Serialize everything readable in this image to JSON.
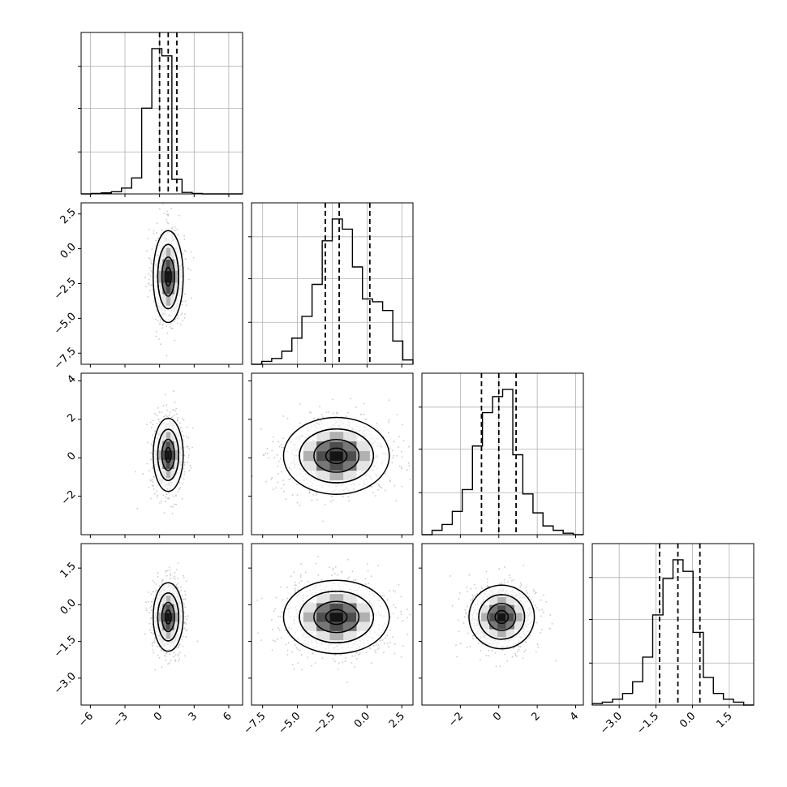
{
  "chart_data": {
    "type": "corner",
    "colors": {
      "line": "#000000",
      "grid": "#b0b0b0",
      "point": "#9a9a9a",
      "background": "#ffffff"
    },
    "grid": true,
    "parameters": [
      {
        "range": [
          -6.8,
          7.2
        ],
        "ticks": [
          -6,
          -3,
          0,
          3,
          6
        ],
        "tick_labels": [
          "−6",
          "−3",
          "0",
          "3",
          "6"
        ],
        "quantiles": [
          0.0,
          0.75,
          1.5
        ],
        "hist_bins": [
          -6.8,
          -5.92,
          -5.05,
          -4.18,
          -3.3,
          -2.42,
          -1.55,
          -0.67,
          0.2,
          1.07,
          1.95,
          2.83,
          3.7,
          4.58,
          5.45,
          6.33,
          7.2
        ],
        "hist_counts": [
          0,
          0.003,
          0.007,
          0.015,
          0.04,
          0.11,
          0.59,
          1.0,
          0.95,
          0.1,
          0.01,
          0.003,
          0,
          0,
          0,
          0
        ]
      },
      {
        "range": [
          -8.3,
          3.3
        ],
        "ticks": [
          -7.5,
          -5.0,
          -2.5,
          0.0,
          2.5
        ],
        "tick_labels": [
          "−7.5",
          "−5.0",
          "−2.5",
          "0.0",
          "2.5"
        ],
        "quantiles": [
          -3.0,
          -2.0,
          0.2
        ],
        "hist_bins": [
          -8.3,
          -7.57,
          -6.85,
          -6.12,
          -5.4,
          -4.68,
          -3.95,
          -3.22,
          -2.5,
          -1.77,
          -1.05,
          -0.33,
          0.4,
          1.12,
          1.85,
          2.57,
          3.3
        ],
        "hist_counts": [
          0,
          0.02,
          0.04,
          0.09,
          0.18,
          0.33,
          0.55,
          0.85,
          1.0,
          0.93,
          0.67,
          0.45,
          0.43,
          0.37,
          0.16,
          0.03
        ]
      },
      {
        "range": [
          -4.0,
          4.4
        ],
        "ticks": [
          -2,
          0,
          2,
          4
        ],
        "tick_labels": [
          "−2",
          "0",
          "2",
          "4"
        ],
        "quantiles": [
          -0.9,
          0.0,
          0.9
        ],
        "hist_bins": [
          -4.0,
          -3.47,
          -2.95,
          -2.42,
          -1.9,
          -1.37,
          -0.85,
          -0.32,
          0.2,
          0.73,
          1.25,
          1.78,
          2.3,
          2.83,
          3.35,
          3.88,
          4.4
        ],
        "hist_counts": [
          0,
          0.03,
          0.07,
          0.16,
          0.31,
          0.61,
          0.84,
          0.95,
          1.0,
          0.55,
          0.28,
          0.15,
          0.06,
          0.03,
          0.01,
          0
        ]
      },
      {
        "range": [
          -4.1,
          2.5
        ],
        "ticks": [
          -3.0,
          -1.5,
          0.0,
          1.5
        ],
        "tick_labels": [
          "−3.0",
          "−1.5",
          "0.0",
          "1.5"
        ],
        "quantiles": [
          -1.35,
          -0.6,
          0.3
        ],
        "hist_bins": [
          -4.1,
          -3.69,
          -3.27,
          -2.86,
          -2.45,
          -2.04,
          -1.63,
          -1.21,
          -0.8,
          -0.39,
          0.02,
          0.44,
          0.85,
          1.26,
          1.67,
          2.09,
          2.5
        ],
        "hist_counts": [
          0.01,
          0.02,
          0.04,
          0.08,
          0.16,
          0.33,
          0.62,
          0.87,
          1.0,
          0.92,
          0.5,
          0.19,
          0.08,
          0.04,
          0.02,
          0
        ]
      }
    ],
    "pairs": [
      {
        "x": 0,
        "y": 1,
        "center": [
          0.75,
          -2.0
        ],
        "spread": [
          0.65,
          1.65
        ]
      },
      {
        "x": 0,
        "y": 2,
        "center": [
          0.75,
          0.15
        ],
        "spread": [
          0.65,
          0.95
        ]
      },
      {
        "x": 1,
        "y": 2,
        "center": [
          -2.2,
          0.1
        ],
        "spread": [
          1.9,
          1.0
        ]
      },
      {
        "x": 0,
        "y": 3,
        "center": [
          0.75,
          -0.5
        ],
        "spread": [
          0.65,
          0.7
        ]
      },
      {
        "x": 1,
        "y": 3,
        "center": [
          -2.2,
          -0.5
        ],
        "spread": [
          1.9,
          0.75
        ]
      },
      {
        "x": 2,
        "y": 3,
        "center": [
          0.15,
          -0.5
        ],
        "spread": [
          0.85,
          0.65
        ]
      }
    ]
  }
}
